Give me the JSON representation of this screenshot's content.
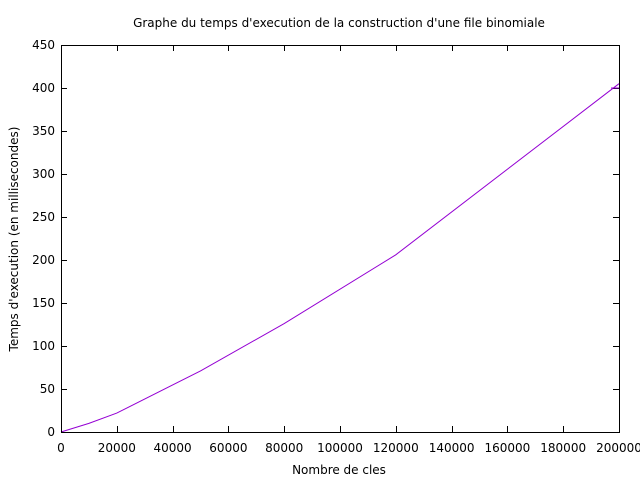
{
  "chart_data": {
    "type": "line",
    "title": "Graphe du temps d'execution de la construction d'une file binomiale",
    "xlabel": "Nombre de cles",
    "ylabel": "Temps d'execution (en millisecondes)",
    "xlim": [
      0,
      200000
    ],
    "ylim": [
      0,
      450
    ],
    "xticks": [
      0,
      20000,
      40000,
      60000,
      80000,
      100000,
      120000,
      140000,
      160000,
      180000,
      200000
    ],
    "yticks": [
      0,
      50,
      100,
      150,
      200,
      250,
      300,
      350,
      400,
      450
    ],
    "grid": false,
    "series": [
      {
        "color": "#9400d3",
        "x": [
          0,
          10000,
          20000,
          50000,
          80000,
          120000,
          200000
        ],
        "y": [
          0,
          10,
          22,
          71,
          126,
          206,
          405
        ]
      }
    ]
  }
}
